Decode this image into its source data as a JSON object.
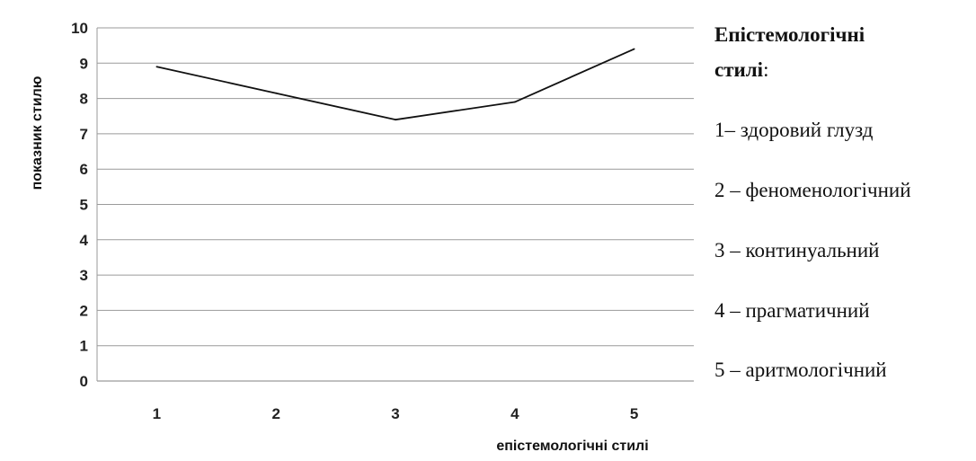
{
  "chart_data": {
    "type": "line",
    "categories": [
      "1",
      "2",
      "3",
      "4",
      "5"
    ],
    "series": [
      {
        "values": [
          8.9,
          8.15,
          7.4,
          7.9,
          9.4
        ]
      }
    ],
    "yticks": [
      "0",
      "1",
      "2",
      "3",
      "4",
      "5",
      "6",
      "7",
      "8",
      "9",
      "10"
    ],
    "ylim": [
      0,
      10
    ],
    "xlabel": "епістемологічні стилі",
    "ylabel": "показник стилю",
    "grid": true,
    "line_color": "#111111",
    "grid_color": "#9a9a9a",
    "legend": {
      "placement": "right",
      "title": "Епістемологічні стилі:",
      "title_bold": "Епістемологічні стилі",
      "title_suffix": ":",
      "items": [
        "1– здоровий глузд",
        "2 – феноменологічний",
        "3 – континуальний",
        "4 – прагматичний",
        "5 – аритмологічний"
      ]
    }
  }
}
